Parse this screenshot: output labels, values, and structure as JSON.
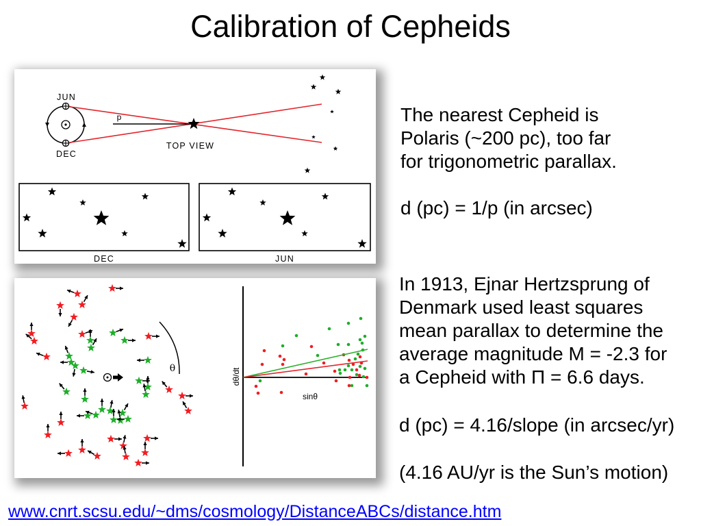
{
  "title": "Calibration of Cepheids",
  "diagram_top": {
    "jun_label": "JUN",
    "dec_label": "DEC",
    "parallax_label": "p",
    "view_label": "TOP VIEW",
    "box_dec_label": "DEC",
    "box_jun_label": "JUN"
  },
  "diagram_bottom": {
    "theta_label": "θ",
    "y_axis_label": "dθ/dt",
    "x_axis_label": "sinθ"
  },
  "text": {
    "intro_lines": [
      "The nearest Cepheid is",
      "Polaris (~200 pc), too far",
      "for trigonometric parallax."
    ],
    "parallax_formula": "d (pc) = 1/p (in arcsec)",
    "hertzsprung_lines": [
      "In 1913, Ejnar Hertzsprung of",
      "Denmark used least squares",
      "mean parallax to determine the",
      "average magnitude M = -2.3 for",
      "a Cepheid with Π = 6.6 days."
    ],
    "slope_formula": "d (pc) = 4.16/slope (in arcsec/yr)",
    "sun_motion_note": "(4.16 AU/yr is the Sun’s motion)"
  },
  "link": {
    "text": "www.cnrt.scsu.edu/~dms/cosmology/DistanceABCs/distance.htm"
  },
  "colors": {
    "sightline": "#e3242b",
    "red_stars": "#f01e23",
    "green_stars": "#1fae2a",
    "fit_red": "#e3242b",
    "fit_green": "#2bb02b",
    "link": "#0000ff"
  }
}
